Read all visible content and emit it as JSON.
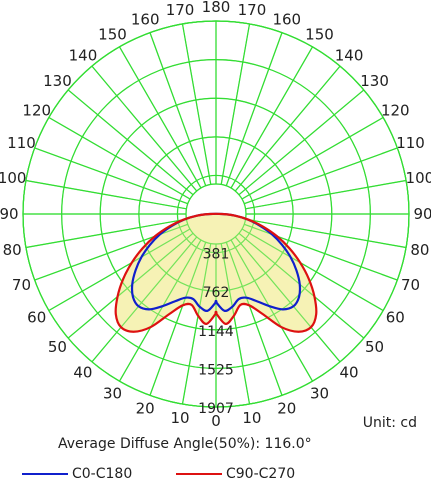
{
  "chart_data": {
    "type": "polar",
    "angle_labels_left": [
      "180",
      "170",
      "160",
      "150",
      "140",
      "130",
      "120",
      "110",
      "100",
      "90",
      "80",
      "70",
      "60",
      "50",
      "40",
      "30",
      "20",
      "10",
      "0"
    ],
    "angle_labels_right": [
      "170",
      "160",
      "150",
      "140",
      "130",
      "120",
      "110",
      "100",
      "90",
      "80",
      "70",
      "60",
      "50",
      "40",
      "30",
      "20",
      "10"
    ],
    "radial_ticks": [
      "381",
      "762",
      "1144",
      "1525",
      "1907"
    ],
    "radial_tick_values": [
      381,
      762,
      1144,
      1525,
      1907
    ],
    "radial_max": 1907,
    "unit_label": "Unit: cd",
    "diffuse_angle_label": "Average Diffuse Angle(50%): 116.0°",
    "grid": true,
    "colors": {
      "grid": "#33dd33",
      "fill": "#f5f0a8",
      "c0": "#1020cc",
      "c90": "#dd1111"
    },
    "series": [
      {
        "name": "C0-C180",
        "color": "#1020cc",
        "angles": [
          0,
          5,
          10,
          15,
          20,
          25,
          30,
          35,
          40,
          45,
          50,
          55,
          60,
          65,
          70,
          75,
          80,
          85,
          90
        ],
        "values": [
          870,
          960,
          930,
          870,
          880,
          950,
          1050,
          1150,
          1190,
          1160,
          1080,
          970,
          850,
          720,
          590,
          450,
          320,
          190,
          60
        ]
      },
      {
        "name": "C90-C270",
        "color": "#dd1111",
        "angles": [
          0,
          5,
          10,
          15,
          20,
          25,
          30,
          35,
          40,
          45,
          50,
          55,
          60,
          65,
          70,
          75,
          80,
          85,
          90
        ],
        "values": [
          980,
          1090,
          1020,
          930,
          960,
          1090,
          1290,
          1420,
          1460,
          1400,
          1270,
          1120,
          960,
          800,
          640,
          480,
          330,
          190,
          60
        ]
      }
    ]
  }
}
